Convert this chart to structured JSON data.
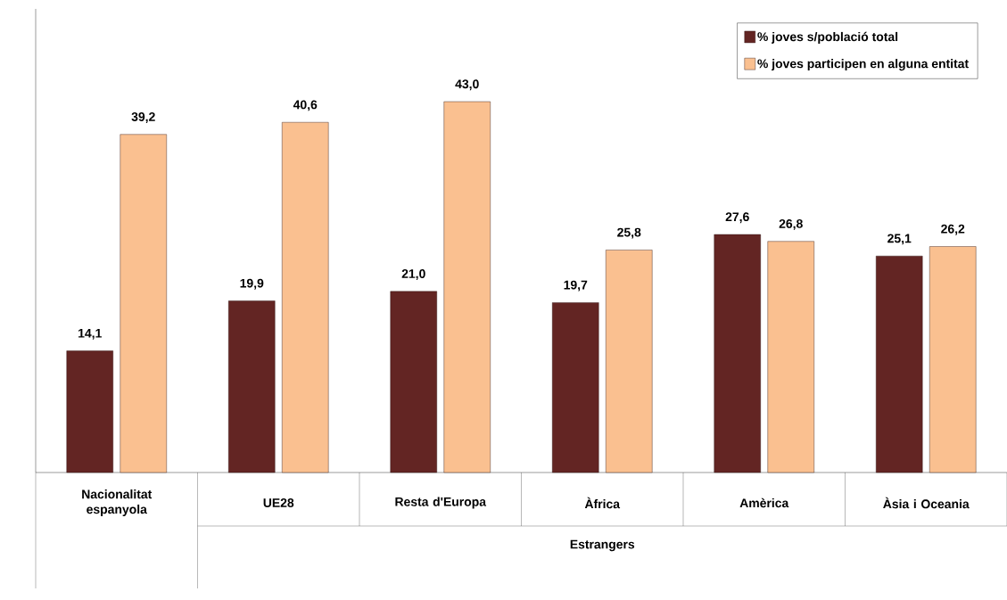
{
  "chart_data": {
    "type": "bar",
    "categories": [
      "Nacionalitat espanyola",
      "UE28",
      "Resta d'Europa",
      "Àfrica",
      "Amèrica",
      "Àsia i Oceania"
    ],
    "series": [
      {
        "name": "% joves s/població total",
        "color": "#632523",
        "values": [
          14.1,
          19.9,
          21.0,
          19.7,
          27.6,
          25.1
        ],
        "value_labels": [
          "14,1",
          "19,9",
          "21,0",
          "19,7",
          "27,6",
          "25,1"
        ]
      },
      {
        "name": "% joves participen en alguna entitat",
        "color": "#fac090",
        "values": [
          39.2,
          40.6,
          43.0,
          25.8,
          26.8,
          26.2
        ],
        "value_labels": [
          "39,2",
          "40,6",
          "43,0",
          "25,8",
          "26,8",
          "26,2"
        ]
      }
    ],
    "annotations": [
      "Estrangers"
    ],
    "legend": "top right"
  }
}
